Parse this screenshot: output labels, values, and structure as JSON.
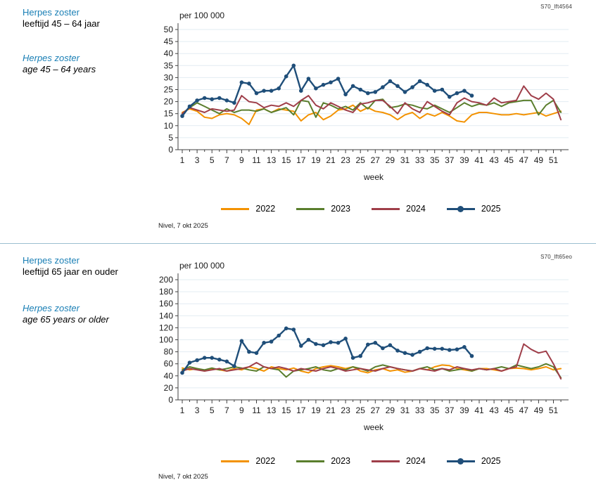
{
  "colors": {
    "title_blue": "#1a7fb5",
    "separator_line": "#9bbfd0",
    "gridline": "#e2ecf2",
    "axis": "#404040"
  },
  "charts": [
    {
      "figure_id": "S70_lft4564",
      "title_nl": "Herpes zoster",
      "subtitle_nl": "leeftijd 45 – 64 jaar",
      "title_en": "Herpes zoster",
      "subtitle_en": "age 45 – 64 years",
      "source_note": "Nivel, 7 okt 2025",
      "chart_data": {
        "type": "line",
        "title": "",
        "y_label": "per 100 000",
        "x_label": "week",
        "ylim": [
          0,
          50
        ],
        "ytick_step": 5,
        "xlim": [
          1,
          52
        ],
        "xticks": [
          1,
          3,
          5,
          7,
          9,
          11,
          13,
          15,
          17,
          19,
          21,
          23,
          25,
          27,
          29,
          31,
          33,
          35,
          37,
          39,
          41,
          43,
          45,
          47,
          49,
          51
        ],
        "grid": true,
        "legend_position": "bottom",
        "series": [
          {
            "name": "2022",
            "color": "#f39200",
            "marker": "none",
            "values": [
              15.5,
              17,
              16,
              13.5,
              13,
              14.5,
              15,
              14.5,
              13,
              10.5,
              16.5,
              17,
              15.5,
              17,
              16.5,
              16,
              12,
              14.5,
              15.5,
              12.5,
              14,
              16.5,
              17,
              18.5,
              16,
              17.5,
              16,
              15.5,
              14.5,
              12.5,
              14.5,
              15.5,
              13,
              15,
              14,
              15.5,
              14,
              12,
              11.5,
              14.5,
              15.5,
              15.5,
              15,
              14.5,
              14.5,
              15,
              14.5,
              15,
              15.5,
              14,
              15,
              16
            ]
          },
          {
            "name": "2023",
            "color": "#5a7e2d",
            "marker": "none",
            "values": [
              15,
              17.5,
              19.5,
              18,
              16.5,
              15,
              17,
              15.5,
              16.5,
              16.5,
              16,
              17,
              15.5,
              16.5,
              17.5,
              14.5,
              20.5,
              20,
              13.5,
              19.5,
              18.5,
              17,
              18,
              16.5,
              19.5,
              17,
              20.5,
              21,
              17.5,
              18,
              19,
              18.5,
              17.5,
              17,
              18.5,
              17,
              15.5,
              17.5,
              19.5,
              18,
              19,
              18.5,
              19.5,
              18,
              19.5,
              20,
              20.5,
              20.5,
              14.5,
              18.5,
              20.5,
              15.5
            ]
          },
          {
            "name": "2024",
            "color": "#9f3e49",
            "marker": "none",
            "values": [
              15,
              17.5,
              16.5,
              15.5,
              17,
              16.5,
              16,
              16.5,
              22.5,
              20,
              19.5,
              17.5,
              18.5,
              18,
              19.5,
              18,
              20.5,
              22.5,
              18.5,
              17,
              19.5,
              18,
              16.5,
              15.5,
              19,
              19.5,
              20.5,
              20.5,
              18,
              15,
              19.5,
              17,
              15.5,
              20,
              18,
              16,
              14.5,
              19.5,
              21.5,
              20,
              19.5,
              18.5,
              21.5,
              19.5,
              20,
              20.5,
              26.5,
              22.5,
              21,
              23.5,
              21,
              12.5
            ]
          },
          {
            "name": "2025",
            "color": "#1f4e79",
            "marker": "circle",
            "values": [
              14,
              18,
              20.5,
              21.5,
              21,
              21.5,
              20.5,
              19.5,
              28,
              27.5,
              23.5,
              24.5,
              24.5,
              25.5,
              30.5,
              35,
              24.5,
              29.5,
              25.5,
              27,
              28,
              29.5,
              23,
              26.5,
              25,
              23.5,
              24,
              26,
              28.5,
              26.5,
              24,
              26,
              28.5,
              27,
              24.5,
              25,
              22,
              23.5,
              24.5,
              22.5
            ]
          }
        ]
      }
    },
    {
      "figure_id": "S70_lft65eo",
      "title_nl": "Herpes zoster",
      "subtitle_nl": "leeftijd 65 jaar en ouder",
      "title_en": "Herpes zoster",
      "subtitle_en": "age 65 years or older",
      "source_note": "Nivel, 7 okt 2025",
      "chart_data": {
        "type": "line",
        "title": "",
        "y_label": "per 100 000",
        "x_label": "week",
        "ylim": [
          0,
          200
        ],
        "ytick_step": 20,
        "xlim": [
          1,
          52
        ],
        "xticks": [
          1,
          3,
          5,
          7,
          9,
          11,
          13,
          15,
          17,
          19,
          21,
          23,
          25,
          27,
          29,
          31,
          33,
          35,
          37,
          39,
          41,
          43,
          45,
          47,
          49,
          51
        ],
        "grid": true,
        "legend_position": "bottom",
        "series": [
          {
            "name": "2022",
            "color": "#f39200",
            "marker": "none",
            "values": [
              53,
              50,
              52,
              48,
              52,
              50,
              48,
              52,
              50,
              55,
              52,
              48,
              55,
              52,
              50,
              53,
              48,
              45,
              52,
              55,
              57,
              55,
              52,
              55,
              48,
              45,
              50,
              52,
              48,
              50,
              46,
              48,
              52,
              50,
              55,
              58,
              57,
              52,
              50,
              48,
              52,
              52,
              50,
              48,
              52,
              53,
              52,
              50,
              52,
              55,
              50,
              52
            ]
          },
          {
            "name": "2023",
            "color": "#5a7e2d",
            "marker": "none",
            "values": [
              50,
              55,
              52,
              50,
              53,
              50,
              52,
              55,
              53,
              50,
              48,
              55,
              52,
              50,
              38,
              48,
              50,
              52,
              55,
              50,
              48,
              52,
              50,
              55,
              52,
              48,
              55,
              58,
              55,
              52,
              50,
              48,
              52,
              55,
              50,
              52,
              48,
              50,
              52,
              48,
              52,
              50,
              52,
              55,
              52,
              58,
              55,
              52,
              55,
              60,
              55,
              37
            ]
          },
          {
            "name": "2024",
            "color": "#9f3e49",
            "marker": "none",
            "values": [
              48,
              52,
              50,
              48,
              50,
              52,
              48,
              50,
              52,
              55,
              62,
              55,
              52,
              55,
              52,
              48,
              52,
              50,
              48,
              52,
              55,
              52,
              48,
              50,
              52,
              50,
              48,
              52,
              55,
              52,
              50,
              48,
              52,
              50,
              48,
              52,
              50,
              55,
              52,
              50,
              52,
              50,
              52,
              48,
              52,
              55,
              93,
              84,
              78,
              81,
              60,
              35
            ]
          },
          {
            "name": "2025",
            "color": "#1f4e79",
            "marker": "circle",
            "values": [
              45,
              62,
              66,
              70,
              70,
              67,
              64,
              56,
              98,
              80,
              78,
              95,
              97,
              107,
              119,
              117,
              90,
              100,
              93,
              91,
              96,
              95,
              102,
              70,
              73,
              92,
              95,
              86,
              91,
              82,
              78,
              75,
              80,
              86,
              85,
              85,
              83,
              84,
              88,
              73
            ]
          }
        ]
      }
    }
  ]
}
